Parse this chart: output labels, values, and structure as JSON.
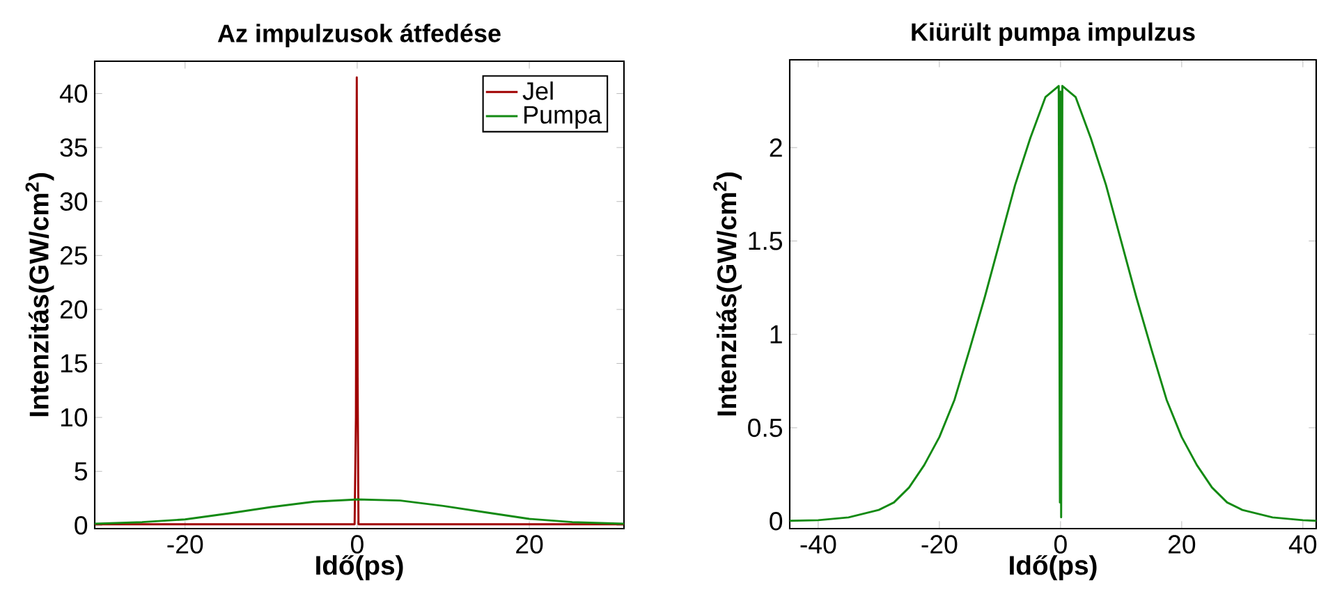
{
  "chart_data": [
    {
      "type": "line",
      "title": "Az impulzusok átfedése",
      "xlabel": "Idő(ps)",
      "ylabel": "Intenzitás(GW/cm$^{2}$)",
      "xlim": [
        -30.5,
        31
      ],
      "ylim": [
        -0.3,
        43
      ],
      "xticks": [
        -20,
        0,
        20
      ],
      "yticks": [
        0,
        5,
        10,
        15,
        20,
        25,
        30,
        35,
        40
      ],
      "legend": "top right",
      "series": [
        {
          "name": "Jel",
          "color": "#a00000",
          "x": [
            -30.5,
            -0.3,
            -0.15,
            -0.05,
            0.05,
            0.15,
            31
          ],
          "values": [
            0.1,
            0.1,
            10,
            41.5,
            13.5,
            0.1,
            0.1
          ]
        },
        {
          "name": "Pumpa",
          "color": "#138a13",
          "x": [
            -30.5,
            -25,
            -20,
            -15,
            -10,
            -5,
            0,
            5,
            10,
            15,
            20,
            25,
            31
          ],
          "values": [
            0.15,
            0.3,
            0.55,
            1.1,
            1.7,
            2.2,
            2.4,
            2.3,
            1.8,
            1.2,
            0.6,
            0.3,
            0.15
          ]
        }
      ]
    },
    {
      "type": "line",
      "title": "Kiürült pumpa impulzus",
      "xlabel": "Idő(ps)",
      "ylabel": "Intenzitás(GW/cm$^{2}$)",
      "xlim": [
        -44.7,
        42.2
      ],
      "ylim": [
        -0.04,
        2.47
      ],
      "xticks": [
        -40,
        -20,
        0,
        20,
        40
      ],
      "yticks": [
        0,
        0.5,
        1,
        1.5,
        2
      ],
      "series": [
        {
          "color": "#138a13",
          "x": [
            -44.7,
            -40,
            -35,
            -30,
            -27.5,
            -25,
            -22.5,
            -20,
            -17.5,
            -15,
            -12.5,
            -10,
            -7.5,
            -5,
            -2.5,
            -0.3,
            -0.1,
            0,
            0.1,
            0.3,
            2.5,
            5,
            7.5,
            10,
            12.5,
            15,
            17.5,
            20,
            22.5,
            25,
            27.5,
            30,
            35,
            40,
            42.2
          ],
          "values": [
            0.002,
            0.005,
            0.02,
            0.06,
            0.1,
            0.18,
            0.3,
            0.45,
            0.65,
            0.92,
            1.2,
            1.5,
            1.8,
            2.05,
            2.27,
            2.33,
            0.1,
            2.3,
            0.02,
            2.33,
            2.27,
            2.05,
            1.8,
            1.5,
            1.2,
            0.92,
            0.65,
            0.45,
            0.3,
            0.18,
            0.1,
            0.06,
            0.02,
            0.005,
            0.002
          ]
        }
      ]
    }
  ]
}
